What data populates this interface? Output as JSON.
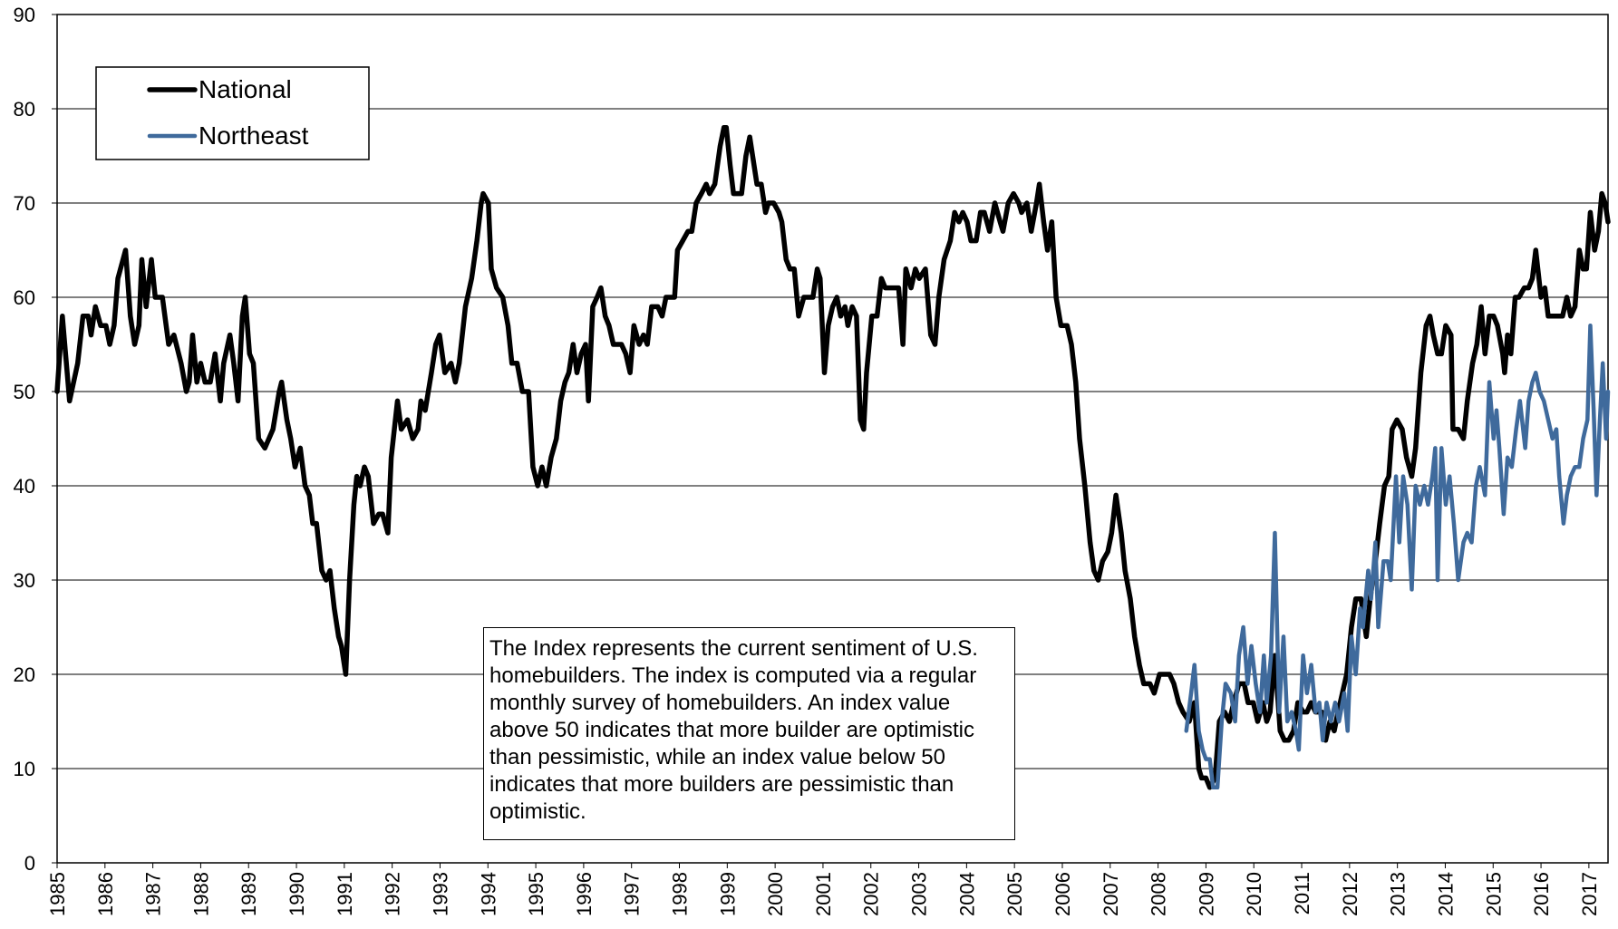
{
  "chart_data": {
    "type": "line",
    "annotation": "The Index represents the current sentiment of U.S. homebuilders.  The index is computed via a regular monthly survey of homebuilders.  An index value above 50 indicates that more builder are optimistic than pessimistic, while an index value below 50 indicates that more builders are pessimistic than optimistic.",
    "xlim": [
      1985,
      2017.4
    ],
    "xticks": [
      1985,
      1986,
      1987,
      1988,
      1989,
      1990,
      1991,
      1992,
      1993,
      1994,
      1995,
      1996,
      1997,
      1998,
      1999,
      2000,
      2001,
      2002,
      2003,
      2004,
      2005,
      2006,
      2007,
      2008,
      2009,
      2010,
      2011,
      2012,
      2013,
      2014,
      2015,
      2016,
      2017
    ],
    "ylim": [
      0,
      90
    ],
    "yticks": [
      0,
      10,
      20,
      30,
      40,
      50,
      60,
      70,
      80,
      90
    ],
    "grid": true,
    "legend": "upper left",
    "series": [
      {
        "name": "National",
        "color": "#000000",
        "x": [
          1985.0,
          1985.11,
          1985.26,
          1985.43,
          1985.54,
          1985.65,
          1985.71,
          1985.8,
          1985.91,
          1986.02,
          1986.1,
          1986.19,
          1986.27,
          1986.43,
          1986.53,
          1986.62,
          1986.71,
          1986.77,
          1986.86,
          1986.97,
          1987.05,
          1987.2,
          1987.33,
          1987.44,
          1987.59,
          1987.7,
          1987.76,
          1987.83,
          1987.92,
          1988.0,
          1988.09,
          1988.2,
          1988.3,
          1988.41,
          1988.48,
          1988.61,
          1988.69,
          1988.78,
          1988.87,
          1988.93,
          1989.02,
          1989.1,
          1989.21,
          1989.34,
          1989.51,
          1989.64,
          1989.69,
          1989.8,
          1989.88,
          1989.97,
          1990.08,
          1990.18,
          1990.27,
          1990.34,
          1990.42,
          1990.53,
          1990.62,
          1990.7,
          1990.79,
          1990.88,
          1990.94,
          1991.03,
          1991.11,
          1991.2,
          1991.26,
          1991.33,
          1991.42,
          1991.5,
          1991.61,
          1991.72,
          1991.8,
          1991.91,
          1991.98,
          1992.11,
          1992.19,
          1992.32,
          1992.43,
          1992.54,
          1992.6,
          1992.69,
          1992.82,
          1992.91,
          1992.99,
          1993.1,
          1993.23,
          1993.32,
          1993.4,
          1993.53,
          1993.66,
          1993.77,
          1993.86,
          1993.9,
          1994.01,
          1994.07,
          1994.18,
          1994.31,
          1994.42,
          1994.5,
          1994.61,
          1994.72,
          1994.85,
          1994.94,
          1995.04,
          1995.13,
          1995.22,
          1995.32,
          1995.43,
          1995.52,
          1995.61,
          1995.69,
          1995.78,
          1995.86,
          1995.95,
          1996.04,
          1996.1,
          1996.19,
          1996.28,
          1996.36,
          1996.45,
          1996.53,
          1996.62,
          1996.71,
          1996.79,
          1996.88,
          1996.97,
          1997.05,
          1997.16,
          1997.25,
          1997.33,
          1997.42,
          1997.55,
          1997.64,
          1997.72,
          1997.81,
          1997.9,
          1997.96,
          1998.07,
          1998.18,
          1998.26,
          1998.35,
          1998.46,
          1998.56,
          1998.63,
          1998.74,
          1998.85,
          1998.93,
          1998.98,
          1999.06,
          1999.13,
          1999.21,
          1999.3,
          1999.39,
          1999.47,
          1999.56,
          1999.62,
          1999.71,
          1999.8,
          1999.86,
          1999.97,
          2000.08,
          2000.14,
          2000.23,
          2000.31,
          2000.4,
          2000.49,
          2000.6,
          2000.68,
          2000.79,
          2000.88,
          2000.94,
          2001.03,
          2001.11,
          2001.2,
          2001.29,
          2001.37,
          2001.46,
          2001.52,
          2001.61,
          2001.7,
          2001.78,
          2001.85,
          2001.91,
          2002.02,
          2002.13,
          2002.22,
          2002.3,
          2002.41,
          2002.52,
          2002.58,
          2002.67,
          2002.73,
          2002.84,
          2002.93,
          2003.01,
          2003.14,
          2003.25,
          2003.34,
          2003.42,
          2003.53,
          2003.66,
          2003.75,
          2003.84,
          2003.92,
          2004.01,
          2004.09,
          2004.2,
          2004.29,
          2004.37,
          2004.48,
          2004.59,
          2004.7,
          2004.76,
          2004.87,
          2004.98,
          2005.09,
          2005.15,
          2005.26,
          2005.35,
          2005.46,
          2005.52,
          2005.61,
          2005.69,
          2005.78,
          2005.87,
          2005.97,
          2006.1,
          2006.19,
          2006.28,
          2006.36,
          2006.47,
          2006.58,
          2006.66,
          2006.75,
          2006.84,
          2006.95,
          2007.03,
          2007.12,
          2007.23,
          2007.31,
          2007.42,
          2007.51,
          2007.61,
          2007.7,
          2007.83,
          2007.92,
          2008.03,
          2008.13,
          2008.24,
          2008.33,
          2008.43,
          2008.52,
          2008.65,
          2008.76,
          2008.85,
          2008.91,
          2009.0,
          2009.08,
          2009.19,
          2009.28,
          2009.39,
          2009.49,
          2009.58,
          2009.69,
          2009.8,
          2009.88,
          2009.99,
          2010.08,
          2010.19,
          2010.27,
          2010.34,
          2010.44,
          2010.55,
          2010.64,
          2010.73,
          2010.83,
          2010.92,
          2011.03,
          2011.11,
          2011.2,
          2011.29,
          2011.42,
          2011.5,
          2011.59,
          2011.68,
          2011.76,
          2011.85,
          2011.94,
          2012.04,
          2012.13,
          2012.24,
          2012.35,
          2012.43,
          2012.54,
          2012.63,
          2012.73,
          2012.82,
          2012.89,
          2012.99,
          2013.1,
          2013.19,
          2013.3,
          2013.38,
          2013.49,
          2013.6,
          2013.68,
          2013.75,
          2013.84,
          2013.92,
          2014.01,
          2014.12,
          2014.16,
          2014.27,
          2014.38,
          2014.46,
          2014.57,
          2014.66,
          2014.75,
          2014.83,
          2014.92,
          2015.01,
          2015.09,
          2015.2,
          2015.24,
          2015.3,
          2015.37,
          2015.46,
          2015.54,
          2015.65,
          2015.74,
          2015.82,
          2015.89,
          2016.0,
          2016.08,
          2016.15,
          2016.26,
          2016.36,
          2016.45,
          2016.54,
          2016.62,
          2016.71,
          2016.8,
          2016.88,
          2016.95,
          2017.03,
          2017.12,
          2017.2,
          2017.27,
          2017.34,
          2017.4
        ],
        "values": [
          50,
          58,
          49,
          53,
          58,
          58,
          56,
          59,
          57,
          57,
          55,
          57,
          62,
          65,
          58,
          55,
          57,
          64,
          59,
          64,
          60,
          60,
          55,
          56,
          53,
          50,
          51,
          56,
          51,
          53,
          51,
          51,
          54,
          49,
          53,
          56,
          53,
          49,
          58,
          60,
          54,
          53,
          45,
          44,
          46,
          50,
          51,
          47,
          45,
          42,
          44,
          40,
          39,
          36,
          36,
          31,
          30,
          31,
          27,
          24,
          23,
          20,
          30,
          38,
          41,
          40,
          42,
          41,
          36,
          37,
          37,
          35,
          43,
          49,
          46,
          47,
          45,
          46,
          49,
          48,
          52,
          55,
          56,
          52,
          53,
          51,
          53,
          59,
          62,
          66,
          70,
          71,
          70,
          63,
          61,
          60,
          57,
          53,
          53,
          50,
          50,
          42,
          40,
          42,
          40,
          43,
          45,
          49,
          51,
          52,
          55,
          52,
          54,
          55,
          49,
          59,
          60,
          61,
          58,
          57,
          55,
          55,
          55,
          54,
          52,
          57,
          55,
          56,
          55,
          59,
          59,
          58,
          60,
          60,
          60,
          65,
          66,
          67,
          67,
          70,
          71,
          72,
          71,
          72,
          76,
          78,
          78,
          74,
          71,
          71,
          71,
          75,
          77,
          74,
          72,
          72,
          69,
          70,
          70,
          69,
          68,
          64,
          63,
          63,
          58,
          60,
          60,
          60,
          63,
          62,
          52,
          57,
          59,
          60,
          58,
          59,
          57,
          59,
          58,
          47,
          46,
          52,
          58,
          58,
          62,
          61,
          61,
          61,
          61,
          55,
          63,
          61,
          63,
          62,
          63,
          56,
          55,
          60,
          64,
          66,
          69,
          68,
          69,
          68,
          66,
          66,
          69,
          69,
          67,
          70,
          68,
          67,
          70,
          71,
          70,
          69,
          70,
          67,
          70,
          72,
          68,
          65,
          68,
          60,
          57,
          57,
          55,
          51,
          45,
          40,
          34,
          31,
          30,
          32,
          33,
          35,
          39,
          35,
          31,
          28,
          24,
          21,
          19,
          19,
          18,
          20,
          20,
          20,
          19,
          17,
          16,
          15,
          17,
          10,
          9,
          9,
          8,
          9,
          15,
          16,
          15,
          17,
          19,
          19,
          17,
          17,
          15,
          17,
          15,
          16,
          22,
          14,
          13,
          13,
          14,
          17,
          16,
          16,
          17,
          16,
          16,
          13,
          15,
          14,
          16,
          18,
          20,
          25,
          28,
          28,
          24,
          28,
          32,
          36,
          40,
          41,
          46,
          47,
          46,
          43,
          41,
          44,
          52,
          57,
          58,
          56,
          54,
          54,
          57,
          56,
          46,
          46,
          45,
          49,
          53,
          55,
          59,
          54,
          58,
          58,
          57,
          54,
          52,
          56,
          54,
          60,
          60,
          61,
          61,
          62,
          65,
          60,
          61,
          58,
          58,
          58,
          58,
          60,
          58,
          59,
          65,
          63,
          63,
          69,
          65,
          67,
          71,
          70,
          68
        ]
      },
      {
        "name": "Northeast",
        "color": "#3f6a9c",
        "x": [
          2008.59,
          2008.69,
          2008.76,
          2008.85,
          2008.93,
          2009.0,
          2009.08,
          2009.15,
          2009.24,
          2009.33,
          2009.41,
          2009.52,
          2009.61,
          2009.69,
          2009.78,
          2009.87,
          2009.95,
          2010.04,
          2010.13,
          2010.21,
          2010.27,
          2010.36,
          2010.44,
          2010.53,
          2010.62,
          2010.7,
          2010.79,
          2010.88,
          2010.94,
          2011.03,
          2011.11,
          2011.2,
          2011.29,
          2011.37,
          2011.44,
          2011.52,
          2011.61,
          2011.7,
          2011.78,
          2011.89,
          2011.96,
          2012.04,
          2012.13,
          2012.22,
          2012.28,
          2012.39,
          2012.45,
          2012.54,
          2012.6,
          2012.71,
          2012.8,
          2012.86,
          2012.97,
          2013.04,
          2013.12,
          2013.21,
          2013.3,
          2013.38,
          2013.47,
          2013.56,
          2013.64,
          2013.73,
          2013.79,
          2013.84,
          2013.92,
          2014.01,
          2014.09,
          2014.18,
          2014.27,
          2014.38,
          2014.46,
          2014.55,
          2014.64,
          2014.72,
          2014.83,
          2014.92,
          2015.01,
          2015.07,
          2015.13,
          2015.22,
          2015.3,
          2015.39,
          2015.48,
          2015.56,
          2015.67,
          2015.74,
          2015.82,
          2015.89,
          2015.97,
          2016.06,
          2016.15,
          2016.24,
          2016.32,
          2016.38,
          2016.47,
          2016.54,
          2016.62,
          2016.71,
          2016.8,
          2016.88,
          2016.97,
          2017.03,
          2017.1,
          2017.16,
          2017.23,
          2017.29,
          2017.36,
          2017.4
        ],
        "values": [
          14,
          18,
          21,
          14,
          12,
          11,
          11,
          8,
          8,
          15,
          19,
          18,
          15,
          22,
          25,
          19,
          23,
          19,
          16,
          22,
          17,
          22,
          35,
          16,
          24,
          15,
          16,
          14,
          12,
          22,
          18,
          21,
          16,
          17,
          13,
          17,
          15,
          17,
          15,
          18,
          14,
          24,
          20,
          27,
          25,
          31,
          28,
          34,
          25,
          32,
          32,
          30,
          41,
          34,
          41,
          38,
          29,
          40,
          38,
          40,
          38,
          41,
          44,
          30,
          44,
          38,
          41,
          36,
          30,
          34,
          35,
          34,
          40,
          42,
          39,
          51,
          45,
          48,
          44,
          37,
          43,
          42,
          46,
          49,
          44,
          49,
          51,
          52,
          50,
          49,
          47,
          45,
          46,
          41,
          36,
          39,
          41,
          42,
          42,
          45,
          47,
          57,
          48,
          39,
          47,
          53,
          45,
          50
        ]
      }
    ]
  }
}
